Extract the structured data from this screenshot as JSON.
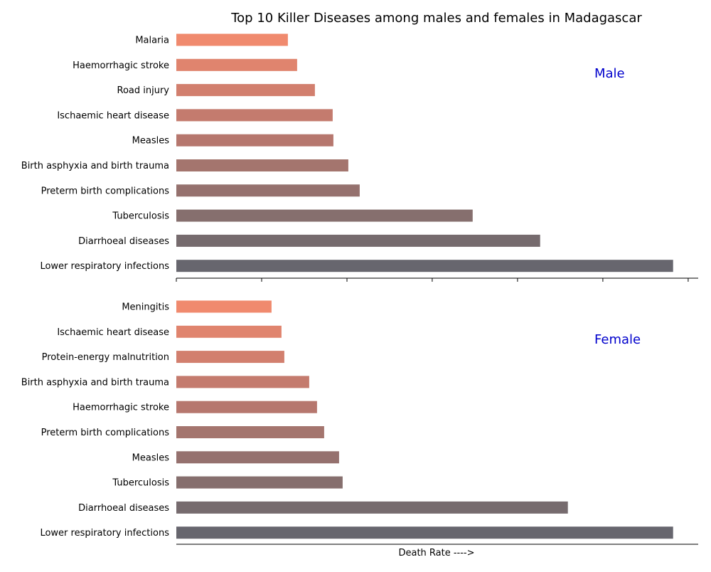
{
  "chart_data": {
    "type": "bar",
    "title": "Top 10 Killer Diseases among males and females in Madagascar",
    "xlabel": "Death Rate ---->",
    "orientation": "horizontal",
    "tick_labels_x": false,
    "grid": false,
    "bar_colors": [
      "#f08a6e",
      "#e0846e",
      "#d27f6e",
      "#c47b6e",
      "#b6776e",
      "#a4756e",
      "#95716e",
      "#866f6e",
      "#766b6e",
      "#67666e"
    ],
    "label_color": "#0000cc",
    "panels": [
      {
        "label": "Male",
        "categories": [
          "Malaria",
          "Haemorrhagic stroke",
          "Road injury",
          "Ischaemic heart disease",
          "Measles",
          "Birth asphyxia and birth trauma",
          "Preterm birth complications",
          "Tuberculosis",
          "Diarrhoeal diseases",
          "Lower respiratory infections"
        ],
        "values": [
          157,
          170,
          195,
          220,
          221,
          242,
          258,
          417,
          512,
          699
        ]
      },
      {
        "label": "Female",
        "categories": [
          "Meningitis",
          "Ischaemic heart disease",
          "Protein-energy malnutrition",
          "Birth asphyxia and birth trauma",
          "Haemorrhagic stroke",
          "Preterm birth complications",
          "Measles",
          "Tuberculosis",
          "Diarrhoeal diseases",
          "Lower respiratory infections"
        ],
        "values": [
          134,
          148,
          152,
          187,
          198,
          208,
          229,
          234,
          551,
          699
        ]
      }
    ]
  }
}
